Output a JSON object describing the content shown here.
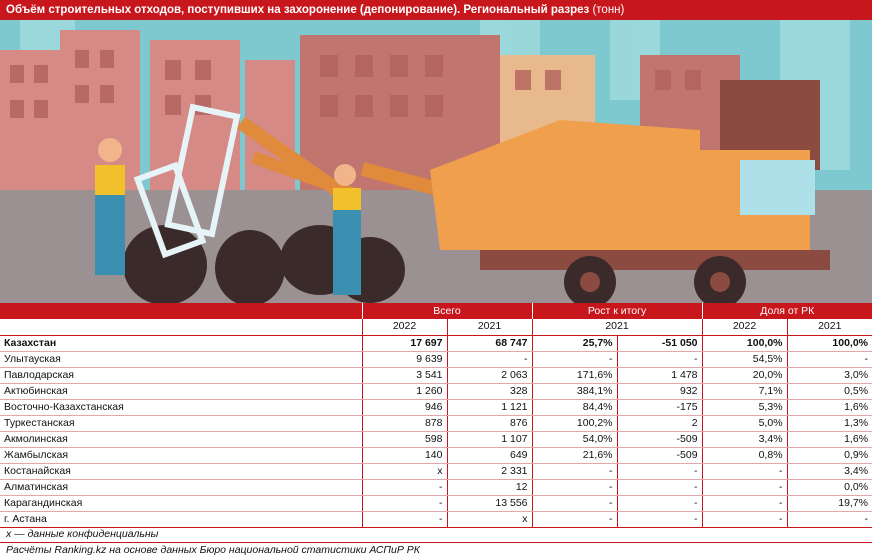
{
  "title": {
    "main": "Объём строительных отходов, поступивших на захоронение (депонирование). Региональный разрез",
    "unit": "(тонн)"
  },
  "colors": {
    "accent": "#c8161d",
    "sky": "#7ec8cf",
    "building": "#d68a86",
    "truck": "#f0a04c",
    "worker_shirt": "#f2c02a",
    "worker_overalls": "#3b8fb0"
  },
  "table": {
    "groups": [
      "Всего",
      "Рост к итогу",
      "Доля от РК"
    ],
    "subheaders": [
      "2022",
      "2021",
      "2021",
      "2022",
      "2021"
    ],
    "rows": [
      {
        "name": "Казахстан",
        "v": [
          "17 697",
          "68 747",
          "25,7%",
          "-51 050",
          "100,0%",
          "100,0%"
        ]
      },
      {
        "name": "Улытауская",
        "v": [
          "9 639",
          "-",
          "-",
          "-",
          "54,5%",
          "-"
        ]
      },
      {
        "name": "Павлодарская",
        "v": [
          "3 541",
          "2 063",
          "171,6%",
          "1 478",
          "20,0%",
          "3,0%"
        ]
      },
      {
        "name": "Актюбинская",
        "v": [
          "1 260",
          "328",
          "384,1%",
          "932",
          "7,1%",
          "0,5%"
        ]
      },
      {
        "name": "Восточно-Казахстанская",
        "v": [
          "946",
          "1 121",
          "84,4%",
          "-175",
          "5,3%",
          "1,6%"
        ]
      },
      {
        "name": "Туркестанская",
        "v": [
          "878",
          "876",
          "100,2%",
          "2",
          "5,0%",
          "1,3%"
        ]
      },
      {
        "name": "Акмолинская",
        "v": [
          "598",
          "1 107",
          "54,0%",
          "-509",
          "3,4%",
          "1,6%"
        ]
      },
      {
        "name": "Жамбылская",
        "v": [
          "140",
          "649",
          "21,6%",
          "-509",
          "0,8%",
          "0,9%"
        ]
      },
      {
        "name": "Костанайская",
        "v": [
          "x",
          "2 331",
          "-",
          "-",
          "-",
          "3,4%"
        ]
      },
      {
        "name": "Алматинская",
        "v": [
          "-",
          "12",
          "-",
          "-",
          "-",
          "0,0%"
        ]
      },
      {
        "name": "Карагандинская",
        "v": [
          "-",
          "13 556",
          "-",
          "-",
          "-",
          "19,7%"
        ]
      },
      {
        "name": "г. Астана",
        "v": [
          "-",
          "x",
          "-",
          "-",
          "-",
          "-"
        ]
      }
    ]
  },
  "notes": {
    "confidential": "x — данные конфиденциальны",
    "source": "Расчёты Ranking.kz на основе данных Бюро национальной статистики АСПиР РК"
  }
}
